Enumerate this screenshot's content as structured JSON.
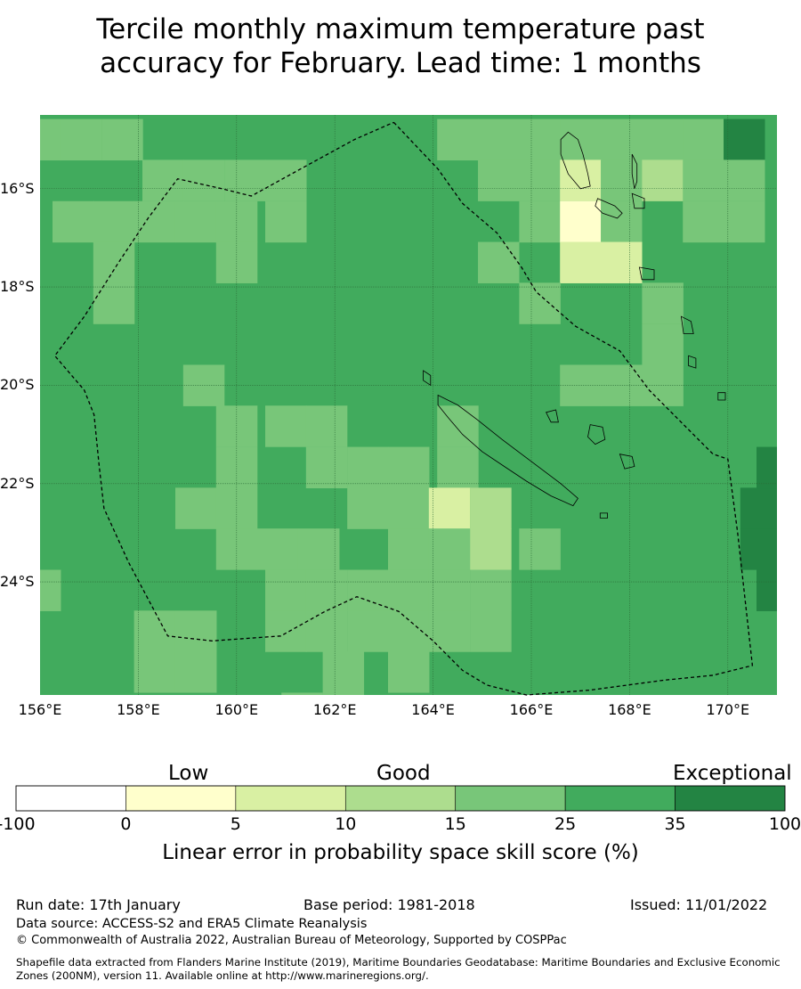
{
  "title": "Tercile monthly maximum temperature past\naccuracy for February. Lead time: 1 months",
  "map": {
    "lon_range": [
      156.0,
      171.0
    ],
    "lat_range": [
      -26.3,
      -14.5
    ],
    "grid_step_deg": 0.833,
    "lat_ticks": [
      "16°S",
      "18°S",
      "20°S",
      "22°S",
      "24°S"
    ],
    "lon_ticks": [
      "156°E",
      "158°E",
      "160°E",
      "162°E",
      "164°E",
      "166°E",
      "168°E",
      "170°E"
    ],
    "colors": {
      "-100": "#ffffff",
      "0": "#ffffcc",
      "5": "#d9f0a3",
      "10": "#addd8e",
      "15": "#78c679",
      "25": "#41ab5d",
      "35": "#238443"
    },
    "default_category": "25",
    "cells": [
      {
        "lon": 156.0,
        "lat": -15.0,
        "c": "15"
      },
      {
        "lon": 156.83,
        "lat": -15.0,
        "c": "15"
      },
      {
        "lon": 157.67,
        "lat": -15.0,
        "c": "15"
      },
      {
        "lon": 164.5,
        "lat": -15.0,
        "c": "15"
      },
      {
        "lon": 165.33,
        "lat": -15.0,
        "c": "15"
      },
      {
        "lon": 166.17,
        "lat": -15.0,
        "c": "15"
      },
      {
        "lon": 167.0,
        "lat": -15.0,
        "c": "15"
      },
      {
        "lon": 167.83,
        "lat": -15.0,
        "c": "15"
      },
      {
        "lon": 168.67,
        "lat": -15.0,
        "c": "15"
      },
      {
        "lon": 169.5,
        "lat": -15.0,
        "c": "15"
      },
      {
        "lon": 170.33,
        "lat": -15.0,
        "c": "35"
      },
      {
        "lon": 158.5,
        "lat": -15.83,
        "c": "15"
      },
      {
        "lon": 159.33,
        "lat": -15.83,
        "c": "15"
      },
      {
        "lon": 160.17,
        "lat": -15.83,
        "c": "15"
      },
      {
        "lon": 161.0,
        "lat": -15.83,
        "c": "15"
      },
      {
        "lon": 165.33,
        "lat": -15.83,
        "c": "15"
      },
      {
        "lon": 166.17,
        "lat": -15.83,
        "c": "15"
      },
      {
        "lon": 167.0,
        "lat": -15.83,
        "c": "5"
      },
      {
        "lon": 167.83,
        "lat": -15.83,
        "c": "15"
      },
      {
        "lon": 168.67,
        "lat": -15.83,
        "c": "10"
      },
      {
        "lon": 169.5,
        "lat": -15.83,
        "c": "15"
      },
      {
        "lon": 170.33,
        "lat": -15.83,
        "c": "15"
      },
      {
        "lon": 156.67,
        "lat": -16.67,
        "c": "15"
      },
      {
        "lon": 157.5,
        "lat": -16.67,
        "c": "15"
      },
      {
        "lon": 158.33,
        "lat": -16.67,
        "c": "15"
      },
      {
        "lon": 159.17,
        "lat": -16.67,
        "c": "15"
      },
      {
        "lon": 160.0,
        "lat": -16.67,
        "c": "15"
      },
      {
        "lon": 161.0,
        "lat": -16.67,
        "c": "15"
      },
      {
        "lon": 166.17,
        "lat": -16.67,
        "c": "15"
      },
      {
        "lon": 167.0,
        "lat": -16.67,
        "c": "0"
      },
      {
        "lon": 167.83,
        "lat": -16.67,
        "c": "15"
      },
      {
        "lon": 169.5,
        "lat": -16.67,
        "c": "15"
      },
      {
        "lon": 170.33,
        "lat": -16.67,
        "c": "15"
      },
      {
        "lon": 157.5,
        "lat": -17.5,
        "c": "15"
      },
      {
        "lon": 160.0,
        "lat": -17.5,
        "c": "15"
      },
      {
        "lon": 165.33,
        "lat": -17.5,
        "c": "15"
      },
      {
        "lon": 167.0,
        "lat": -17.5,
        "c": "5"
      },
      {
        "lon": 167.83,
        "lat": -17.5,
        "c": "5"
      },
      {
        "lon": 157.5,
        "lat": -18.33,
        "c": "15"
      },
      {
        "lon": 166.17,
        "lat": -18.33,
        "c": "15"
      },
      {
        "lon": 168.67,
        "lat": -18.33,
        "c": "15"
      },
      {
        "lon": 168.67,
        "lat": -19.17,
        "c": "15"
      },
      {
        "lon": 167.0,
        "lat": -20.0,
        "c": "15"
      },
      {
        "lon": 167.83,
        "lat": -20.0,
        "c": "15"
      },
      {
        "lon": 168.67,
        "lat": -20.0,
        "c": "15"
      },
      {
        "lon": 159.33,
        "lat": -20.0,
        "c": "15"
      },
      {
        "lon": 160.0,
        "lat": -20.83,
        "c": "15"
      },
      {
        "lon": 161.0,
        "lat": -20.83,
        "c": "15"
      },
      {
        "lon": 161.83,
        "lat": -20.83,
        "c": "15"
      },
      {
        "lon": 164.5,
        "lat": -20.83,
        "c": "15"
      },
      {
        "lon": 160.0,
        "lat": -21.67,
        "c": "15"
      },
      {
        "lon": 161.83,
        "lat": -21.67,
        "c": "15"
      },
      {
        "lon": 162.67,
        "lat": -21.67,
        "c": "15"
      },
      {
        "lon": 163.5,
        "lat": -21.67,
        "c": "15"
      },
      {
        "lon": 164.5,
        "lat": -21.67,
        "c": "15"
      },
      {
        "lon": 159.17,
        "lat": -22.5,
        "c": "15"
      },
      {
        "lon": 160.0,
        "lat": -22.5,
        "c": "15"
      },
      {
        "lon": 162.67,
        "lat": -22.5,
        "c": "15"
      },
      {
        "lon": 163.5,
        "lat": -22.5,
        "c": "15"
      },
      {
        "lon": 164.33,
        "lat": -22.5,
        "c": "5"
      },
      {
        "lon": 165.17,
        "lat": -22.5,
        "c": "10"
      },
      {
        "lon": 160.0,
        "lat": -23.33,
        "c": "15"
      },
      {
        "lon": 160.83,
        "lat": -23.33,
        "c": "15"
      },
      {
        "lon": 161.67,
        "lat": -23.33,
        "c": "15"
      },
      {
        "lon": 163.5,
        "lat": -23.33,
        "c": "15"
      },
      {
        "lon": 164.33,
        "lat": -23.33,
        "c": "15"
      },
      {
        "lon": 165.17,
        "lat": -23.33,
        "c": "10"
      },
      {
        "lon": 166.17,
        "lat": -23.33,
        "c": "15"
      },
      {
        "lon": 161.0,
        "lat": -24.17,
        "c": "15"
      },
      {
        "lon": 161.83,
        "lat": -24.17,
        "c": "15"
      },
      {
        "lon": 162.67,
        "lat": -24.17,
        "c": "15"
      },
      {
        "lon": 163.5,
        "lat": -24.17,
        "c": "15"
      },
      {
        "lon": 164.33,
        "lat": -24.17,
        "c": "15"
      },
      {
        "lon": 156.0,
        "lat": -24.17,
        "c": "15"
      },
      {
        "lon": 161.0,
        "lat": -25.0,
        "c": "15"
      },
      {
        "lon": 161.83,
        "lat": -25.0,
        "c": "15"
      },
      {
        "lon": 162.67,
        "lat": -25.0,
        "c": "15"
      },
      {
        "lon": 163.5,
        "lat": -25.0,
        "c": "15"
      },
      {
        "lon": 164.33,
        "lat": -25.0,
        "c": "15"
      },
      {
        "lon": 165.17,
        "lat": -25.0,
        "c": "15"
      },
      {
        "lon": 165.17,
        "lat": -24.17,
        "c": "15"
      },
      {
        "lon": 158.33,
        "lat": -25.0,
        "c": "15"
      },
      {
        "lon": 159.17,
        "lat": -25.0,
        "c": "15"
      },
      {
        "lon": 158.33,
        "lat": -25.83,
        "c": "15"
      },
      {
        "lon": 159.17,
        "lat": -25.83,
        "c": "15"
      },
      {
        "lon": 162.17,
        "lat": -25.83,
        "c": "15"
      },
      {
        "lon": 163.5,
        "lat": -25.83,
        "c": "15"
      },
      {
        "lon": 161.33,
        "lat": -26.67,
        "c": "15"
      },
      {
        "lon": 162.17,
        "lat": -26.67,
        "c": "15"
      },
      {
        "lon": 170.67,
        "lat": -22.5,
        "c": "35"
      },
      {
        "lon": 170.67,
        "lat": -23.33,
        "c": "35"
      },
      {
        "lon": 171.0,
        "lat": -21.67,
        "c": "35"
      },
      {
        "lon": 171.0,
        "lat": -24.17,
        "c": "35"
      }
    ],
    "eez_boundary": [
      [
        163.2,
        -14.65
      ],
      [
        164.1,
        -15.6
      ],
      [
        164.6,
        -16.3
      ],
      [
        165.3,
        -16.9
      ],
      [
        165.8,
        -17.6
      ],
      [
        166.1,
        -18.1
      ],
      [
        166.9,
        -18.8
      ],
      [
        167.8,
        -19.3
      ],
      [
        168.4,
        -20.1
      ],
      [
        169.1,
        -20.8
      ],
      [
        169.7,
        -21.4
      ],
      [
        170.0,
        -21.5
      ],
      [
        170.2,
        -23.0
      ],
      [
        170.5,
        -25.7
      ],
      [
        169.7,
        -25.9
      ],
      [
        168.7,
        -26.0
      ],
      [
        167.2,
        -26.2
      ],
      [
        165.9,
        -26.3
      ],
      [
        165.1,
        -26.1
      ],
      [
        164.6,
        -25.8
      ],
      [
        164.0,
        -25.2
      ],
      [
        163.3,
        -24.6
      ],
      [
        162.45,
        -24.3
      ],
      [
        161.8,
        -24.6
      ],
      [
        160.9,
        -25.1
      ],
      [
        159.5,
        -25.2
      ],
      [
        158.6,
        -25.1
      ],
      [
        157.8,
        -23.6
      ],
      [
        157.3,
        -22.5
      ],
      [
        157.2,
        -21.6
      ],
      [
        157.1,
        -20.6
      ],
      [
        156.9,
        -20.1
      ],
      [
        156.3,
        -19.4
      ],
      [
        156.9,
        -18.6
      ],
      [
        157.6,
        -17.5
      ],
      [
        158.2,
        -16.6
      ],
      [
        158.8,
        -15.8
      ],
      [
        159.7,
        -16.0
      ],
      [
        160.3,
        -16.15
      ],
      [
        161.3,
        -15.6
      ],
      [
        162.4,
        -15.0
      ],
      [
        163.2,
        -14.65
      ]
    ],
    "islands": [
      [
        [
          164.1,
          -20.2
        ],
        [
          164.5,
          -20.4
        ],
        [
          164.9,
          -20.7
        ],
        [
          165.4,
          -21.1
        ],
        [
          165.8,
          -21.4
        ],
        [
          166.2,
          -21.7
        ],
        [
          166.6,
          -22.0
        ],
        [
          166.95,
          -22.3
        ],
        [
          166.85,
          -22.45
        ],
        [
          166.4,
          -22.25
        ],
        [
          165.9,
          -21.95
        ],
        [
          165.45,
          -21.65
        ],
        [
          165.0,
          -21.35
        ],
        [
          164.6,
          -21.0
        ],
        [
          164.3,
          -20.65
        ],
        [
          164.1,
          -20.4
        ],
        [
          164.1,
          -20.2
        ]
      ],
      [
        [
          166.75,
          -14.85
        ],
        [
          166.95,
          -15.0
        ],
        [
          167.05,
          -15.3
        ],
        [
          167.15,
          -15.7
        ],
        [
          167.2,
          -15.95
        ],
        [
          167.0,
          -16.0
        ],
        [
          166.75,
          -15.7
        ],
        [
          166.6,
          -15.3
        ],
        [
          166.6,
          -15.0
        ],
        [
          166.75,
          -14.85
        ]
      ],
      [
        [
          167.35,
          -16.2
        ],
        [
          167.7,
          -16.35
        ],
        [
          167.85,
          -16.5
        ],
        [
          167.75,
          -16.6
        ],
        [
          167.45,
          -16.5
        ],
        [
          167.3,
          -16.35
        ],
        [
          167.35,
          -16.2
        ]
      ],
      [
        [
          168.05,
          -15.3
        ],
        [
          168.15,
          -15.5
        ],
        [
          168.15,
          -15.85
        ],
        [
          168.1,
          -16.0
        ],
        [
          168.05,
          -15.7
        ],
        [
          168.05,
          -15.3
        ]
      ],
      [
        [
          168.05,
          -16.1
        ],
        [
          168.3,
          -16.2
        ],
        [
          168.3,
          -16.4
        ],
        [
          168.1,
          -16.4
        ],
        [
          168.05,
          -16.1
        ]
      ],
      [
        [
          168.2,
          -17.6
        ],
        [
          168.5,
          -17.65
        ],
        [
          168.5,
          -17.85
        ],
        [
          168.25,
          -17.85
        ],
        [
          168.2,
          -17.6
        ]
      ],
      [
        [
          169.05,
          -18.6
        ],
        [
          169.25,
          -18.7
        ],
        [
          169.3,
          -18.95
        ],
        [
          169.1,
          -18.95
        ],
        [
          169.05,
          -18.6
        ]
      ],
      [
        [
          169.2,
          -19.4
        ],
        [
          169.35,
          -19.45
        ],
        [
          169.35,
          -19.65
        ],
        [
          169.2,
          -19.6
        ],
        [
          169.2,
          -19.4
        ]
      ],
      [
        [
          167.2,
          -20.8
        ],
        [
          167.45,
          -20.85
        ],
        [
          167.5,
          -21.1
        ],
        [
          167.3,
          -21.2
        ],
        [
          167.15,
          -21.05
        ],
        [
          167.2,
          -20.8
        ]
      ],
      [
        [
          166.3,
          -20.55
        ],
        [
          166.5,
          -20.5
        ],
        [
          166.55,
          -20.75
        ],
        [
          166.4,
          -20.75
        ],
        [
          166.3,
          -20.55
        ]
      ],
      [
        [
          167.8,
          -21.4
        ],
        [
          168.05,
          -21.45
        ],
        [
          168.1,
          -21.65
        ],
        [
          167.9,
          -21.7
        ],
        [
          167.8,
          -21.4
        ]
      ],
      [
        [
          169.8,
          -20.15
        ],
        [
          169.95,
          -20.15
        ],
        [
          169.95,
          -20.3
        ],
        [
          169.8,
          -20.3
        ],
        [
          169.8,
          -20.15
        ]
      ],
      [
        [
          167.4,
          -22.6
        ],
        [
          167.55,
          -22.6
        ],
        [
          167.55,
          -22.7
        ],
        [
          167.4,
          -22.7
        ],
        [
          167.4,
          -22.6
        ]
      ],
      [
        [
          163.8,
          -19.7
        ],
        [
          163.95,
          -19.8
        ],
        [
          163.95,
          -20.0
        ],
        [
          163.8,
          -19.9
        ],
        [
          163.8,
          -19.7
        ]
      ]
    ]
  },
  "colorbar": {
    "categories": [
      "Low",
      "Good",
      "Exceptional"
    ],
    "tick_labels": [
      "-100",
      "0",
      "5",
      "10",
      "15",
      "25",
      "35",
      "100"
    ],
    "colors": [
      "#ffffff",
      "#ffffcc",
      "#d9f0a3",
      "#addd8e",
      "#78c679",
      "#41ab5d",
      "#238443"
    ],
    "title": "Linear error in probability space skill score (%)"
  },
  "footer": {
    "run_date": "Run date: 17th January",
    "base_period": "Base period: 1981-2018",
    "issued": "Issued: 11/01/2022",
    "data_source": "Data source: ACCESS-S2 and ERA5 Climate Reanalysis",
    "copyright": "© Commonwealth of Australia 2022, Australian Bureau of Meteorology, Supported by COSPPac",
    "shapefile_line1": "Shapefile data extracted from Flanders Marine Institute (2019), Maritime Boundaries Geodatabase: Maritime Boundaries and Exclusive Economic",
    "shapefile_line2": "Zones (200NM), version 11. Available online at http://www.marineregions.org/."
  }
}
